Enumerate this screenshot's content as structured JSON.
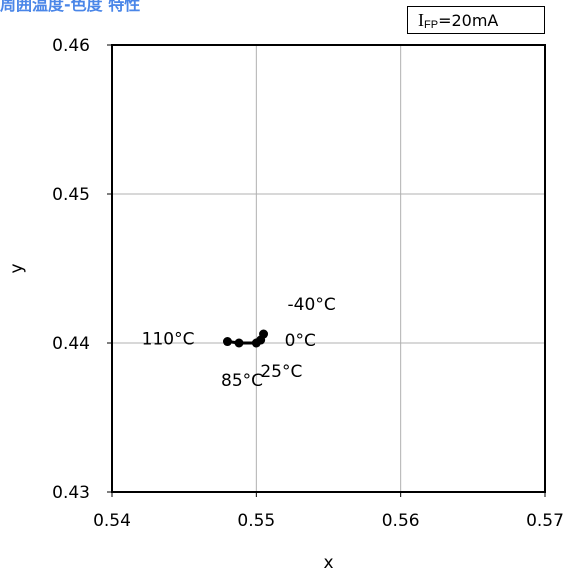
{
  "page": {
    "title": "周囲温度-色度 特性",
    "title_color": "#4a86e8",
    "condition": {
      "symbol": "I",
      "subscript": "FP",
      "value": "=20mA"
    }
  },
  "chart_data": {
    "type": "scatter",
    "title": "周囲温度-色度 特性",
    "xlabel": "x",
    "ylabel": "y",
    "xlim": [
      0.54,
      0.57
    ],
    "ylim": [
      0.43,
      0.46
    ],
    "x_ticks": [
      "0.54",
      "0.55",
      "0.56",
      "0.57"
    ],
    "y_ticks": [
      "0.43",
      "0.44",
      "0.45",
      "0.46"
    ],
    "grid": true,
    "series": [
      {
        "points": [
          {
            "label": "-40°C",
            "x": 0.5505,
            "y": 0.4406
          },
          {
            "label": "0°C",
            "x": 0.5503,
            "y": 0.4402
          },
          {
            "label": "25°C",
            "x": 0.55,
            "y": 0.44
          },
          {
            "label": "85°C",
            "x": 0.5488,
            "y": 0.44
          },
          {
            "label": "110°C",
            "x": 0.548,
            "y": 0.4401
          }
        ]
      }
    ],
    "line_color": "#000000",
    "marker_color": "#000000",
    "grid_color": "#b0b0b0"
  }
}
